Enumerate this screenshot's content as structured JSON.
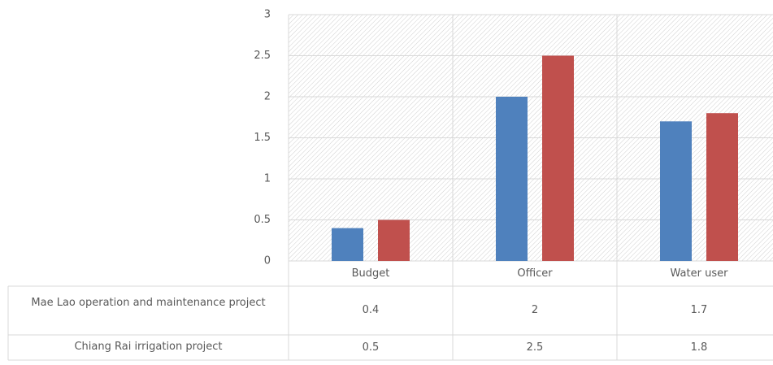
{
  "chart_data": {
    "type": "bar",
    "categories": [
      "Budget",
      "Officer",
      "Water user"
    ],
    "series": [
      {
        "name": "Mae Lao operation and maintenance project",
        "color": "#4f81bd",
        "values": [
          0.4,
          2,
          1.7
        ]
      },
      {
        "name": "Chiang Rai irrigation project",
        "color": "#c0504d",
        "values": [
          0.5,
          2.5,
          1.8
        ]
      }
    ],
    "ylim": [
      0,
      3
    ],
    "yticks": [
      0,
      0.5,
      1,
      1.5,
      2,
      2.5,
      3
    ],
    "grid": true,
    "data_table": true
  }
}
